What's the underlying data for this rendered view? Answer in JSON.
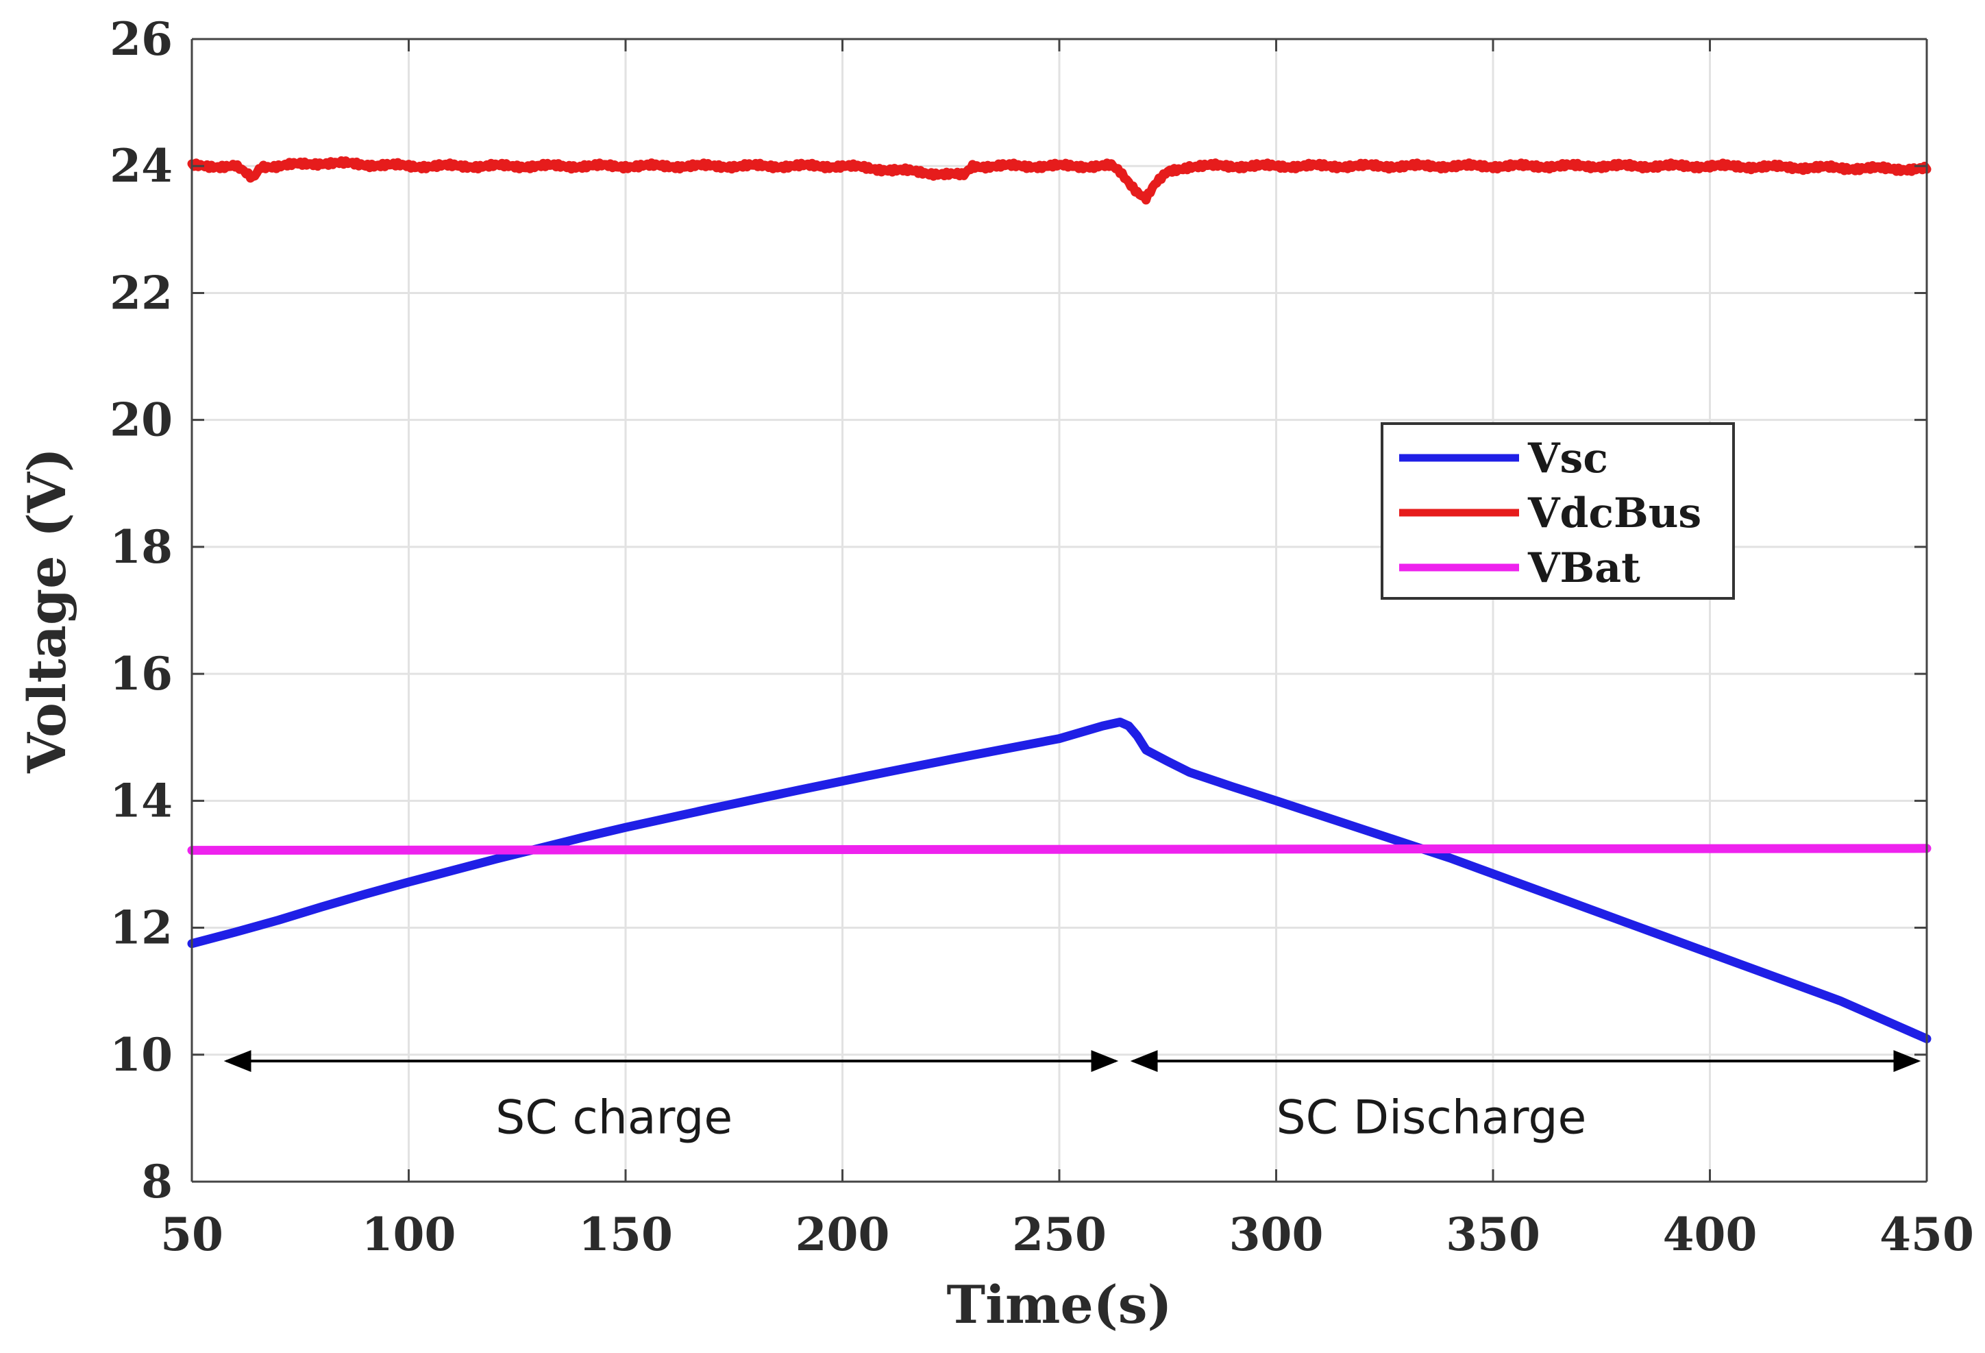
{
  "chart_data": {
    "type": "line",
    "title": "",
    "xlabel": "Time(s)",
    "ylabel": "Voltage (V)",
    "xlim": [
      50,
      450
    ],
    "ylim": [
      8,
      26
    ],
    "xticks": [
      50,
      100,
      150,
      200,
      250,
      300,
      350,
      400,
      450
    ],
    "yticks": [
      8,
      10,
      12,
      14,
      16,
      18,
      20,
      22,
      24,
      26
    ],
    "grid": true,
    "legend_position": "right-middle",
    "series": [
      {
        "name": "Vsc",
        "color": "#1f1fe6",
        "x": [
          50,
          60,
          70,
          80,
          90,
          100,
          110,
          120,
          130,
          140,
          150,
          170,
          190,
          210,
          230,
          250,
          260,
          264,
          266,
          268,
          270,
          275,
          280,
          290,
          300,
          320,
          340,
          360,
          380,
          400,
          420,
          430,
          440,
          450
        ],
        "y": [
          11.75,
          11.93,
          12.12,
          12.33,
          12.53,
          12.72,
          12.9,
          13.08,
          13.25,
          13.42,
          13.58,
          13.88,
          14.17,
          14.45,
          14.72,
          14.98,
          15.18,
          15.24,
          15.18,
          15.02,
          14.8,
          14.62,
          14.45,
          14.22,
          14.0,
          13.55,
          13.1,
          12.6,
          12.1,
          11.6,
          11.1,
          10.85,
          10.55,
          10.25
        ]
      },
      {
        "name": "VdcBus",
        "color": "#e61c1c",
        "x": [
          50,
          60,
          64,
          66,
          70,
          80,
          100,
          150,
          200,
          228,
          230,
          250,
          262,
          264,
          266,
          268,
          270,
          272,
          275,
          280,
          300,
          350,
          400,
          450
        ],
        "y": [
          24.0,
          24.0,
          23.8,
          24.0,
          24.0,
          24.05,
          24.0,
          24.0,
          24.0,
          23.85,
          24.0,
          24.0,
          24.0,
          23.9,
          23.75,
          23.6,
          23.5,
          23.7,
          23.9,
          24.0,
          24.0,
          24.0,
          24.0,
          23.95
        ]
      },
      {
        "name": "VBat",
        "color": "#ee22ee",
        "x": [
          50,
          450
        ],
        "y": [
          13.22,
          13.25
        ]
      }
    ],
    "annotations": [
      {
        "text": "SC charge",
        "arrow_from": 58,
        "arrow_to": 263,
        "arrow_y": 9.9,
        "text_x": 120,
        "text_y": 9.0
      },
      {
        "text": "SC Discharge",
        "arrow_from": 267,
        "arrow_to": 448,
        "arrow_y": 9.9,
        "text_x": 300,
        "text_y": 9.0
      }
    ]
  }
}
